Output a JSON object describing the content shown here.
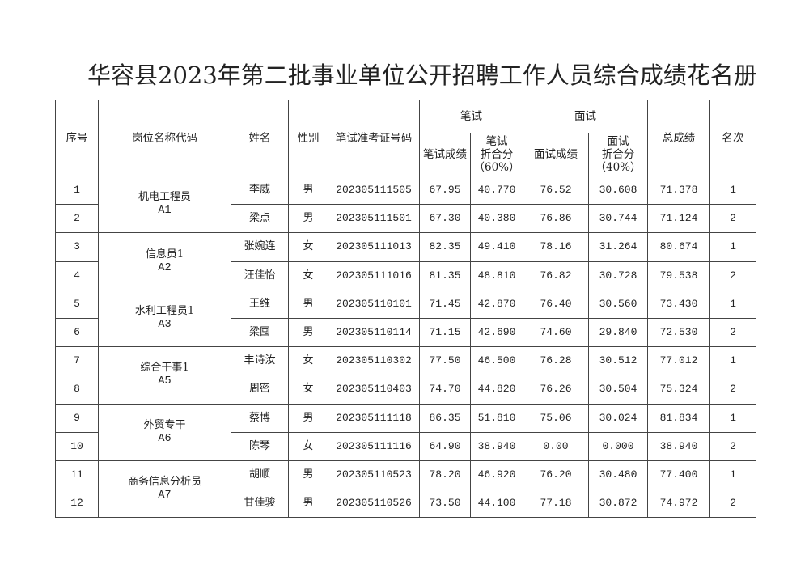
{
  "title": "华容县2023年第二批事业单位公开招聘工作人员综合成绩花名册",
  "headers": {
    "seq": "序号",
    "post": "岗位名称代码",
    "name": "姓名",
    "gender": "性别",
    "exam_id": "笔试准考证号码",
    "written": "笔试",
    "written_score": "笔试成绩",
    "written_weighted_1": "笔试",
    "written_weighted_2": "折合分",
    "written_weighted_3": "（60%）",
    "interview": "面试",
    "interview_score": "面试成绩",
    "interview_weighted_1": "面试",
    "interview_weighted_2": "折合分",
    "interview_weighted_3": "（40%）",
    "total": "总成绩",
    "rank": "名次"
  },
  "groups": [
    {
      "post": "机电工程员",
      "code": "A1",
      "rows": [
        [
          "1",
          "李威",
          "男",
          "202305111505",
          "67.95",
          "40.770",
          "76.52",
          "30.608",
          "71.378",
          "1"
        ],
        [
          "2",
          "梁点",
          "男",
          "202305111501",
          "67.30",
          "40.380",
          "76.86",
          "30.744",
          "71.124",
          "2"
        ]
      ]
    },
    {
      "post": "信息员1",
      "code": "A2",
      "rows": [
        [
          "3",
          "张婉连",
          "女",
          "202305111013",
          "82.35",
          "49.410",
          "78.16",
          "31.264",
          "80.674",
          "1"
        ],
        [
          "4",
          "汪佳怡",
          "女",
          "202305111016",
          "81.35",
          "48.810",
          "76.82",
          "30.728",
          "79.538",
          "2"
        ]
      ]
    },
    {
      "post": "水利工程员1",
      "code": "A3",
      "rows": [
        [
          "5",
          "王维",
          "男",
          "202305110101",
          "71.45",
          "42.870",
          "76.40",
          "30.560",
          "73.430",
          "1"
        ],
        [
          "6",
          "梁囤",
          "男",
          "202305110114",
          "71.15",
          "42.690",
          "74.60",
          "29.840",
          "72.530",
          "2"
        ]
      ]
    },
    {
      "post": "综合干事1",
      "code": "A5",
      "rows": [
        [
          "7",
          "丰诗汝",
          "女",
          "202305110302",
          "77.50",
          "46.500",
          "76.28",
          "30.512",
          "77.012",
          "1"
        ],
        [
          "8",
          "周密",
          "女",
          "202305110403",
          "74.70",
          "44.820",
          "76.26",
          "30.504",
          "75.324",
          "2"
        ]
      ]
    },
    {
      "post": "外贸专干",
      "code": "A6",
      "rows": [
        [
          "9",
          "蔡博",
          "男",
          "202305111118",
          "86.35",
          "51.810",
          "75.06",
          "30.024",
          "81.834",
          "1"
        ],
        [
          "10",
          "陈琴",
          "女",
          "202305111116",
          "64.90",
          "38.940",
          "0.00",
          "0.000",
          "38.940",
          "2"
        ]
      ]
    },
    {
      "post": "商务信息分析员",
      "code": "A7",
      "rows": [
        [
          "11",
          "胡顺",
          "男",
          "202305110523",
          "78.20",
          "46.920",
          "76.20",
          "30.480",
          "77.400",
          "1"
        ],
        [
          "12",
          "甘佳骏",
          "男",
          "202305110526",
          "73.50",
          "44.100",
          "77.18",
          "30.872",
          "74.972",
          "2"
        ]
      ]
    }
  ]
}
